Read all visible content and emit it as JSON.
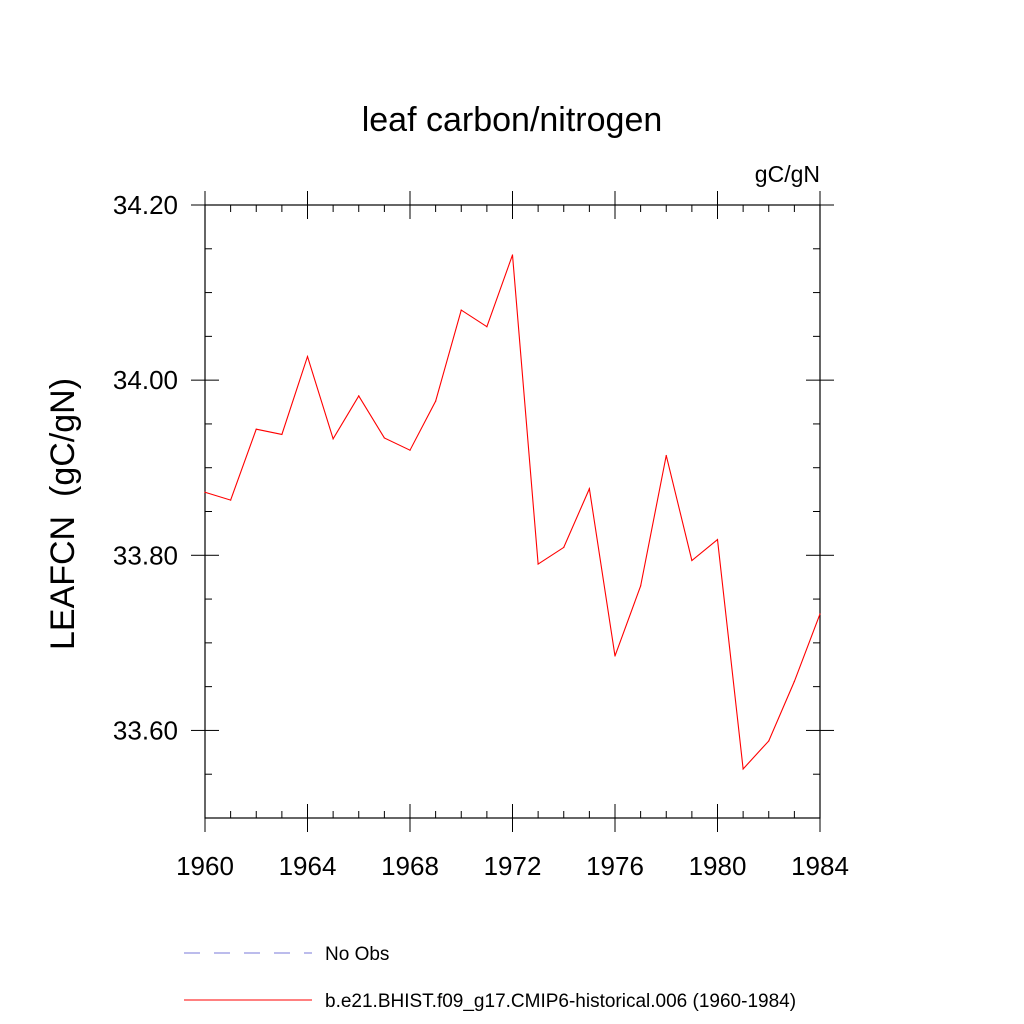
{
  "chart_data": {
    "type": "line",
    "title": "leaf carbon/nitrogen",
    "units_label": "gC/gN",
    "ylabel": "LEAFCN  (gC/gN)",
    "xlabel": "",
    "xlim": [
      1960,
      1984
    ],
    "ylim": [
      33.5,
      34.2
    ],
    "x_ticks": [
      1960,
      1964,
      1968,
      1972,
      1976,
      1980,
      1984
    ],
    "x_tick_labels": [
      "1960",
      "1964",
      "1968",
      "1972",
      "1976",
      "1980",
      "1984"
    ],
    "y_ticks": [
      33.6,
      33.8,
      34.0,
      34.2
    ],
    "y_tick_labels": [
      "33.60",
      "33.80",
      "34.00",
      "34.20"
    ],
    "y_minor_step": 0.05,
    "x_minor_step": 1,
    "grid": false,
    "legend_position": "bottom",
    "series": [
      {
        "name": "b.e21.BHIST.f09_g17.CMIP6-historical.006 (1960-1984)",
        "color": "#ff0000",
        "style": "solid",
        "x": [
          1960,
          1961,
          1962,
          1963,
          1964,
          1965,
          1966,
          1967,
          1968,
          1969,
          1970,
          1971,
          1972,
          1973,
          1974,
          1975,
          1976,
          1977,
          1978,
          1979,
          1980,
          1981,
          1982,
          1983,
          1984
        ],
        "values": [
          33.872,
          33.863,
          33.944,
          33.938,
          34.027,
          33.933,
          33.982,
          33.934,
          33.92,
          33.976,
          34.08,
          34.061,
          34.143,
          33.79,
          33.809,
          33.876,
          33.685,
          33.765,
          33.914,
          33.794,
          33.818,
          33.556,
          33.588,
          33.656,
          33.733
        ]
      }
    ],
    "legend": [
      {
        "label": "No Obs",
        "color": "#7a7ad8",
        "style": "dashed"
      },
      {
        "label": "b.e21.BHIST.f09_g17.CMIP6-historical.006 (1960-1984)",
        "color": "#ff0000",
        "style": "solid"
      }
    ]
  }
}
